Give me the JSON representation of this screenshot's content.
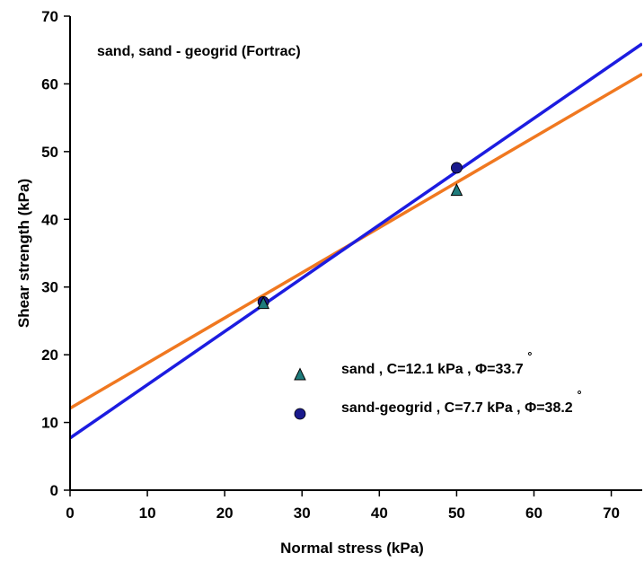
{
  "chart_data": {
    "type": "scatter",
    "annotation": "sand, sand - geogrid (Fortrac)",
    "xlabel": "Normal stress (kPa)",
    "ylabel": "Shear strength (kPa)",
    "xlim": [
      0,
      74
    ],
    "ylim": [
      0,
      70
    ],
    "xticks": [
      0,
      10,
      20,
      30,
      40,
      50,
      60,
      70
    ],
    "yticks": [
      0,
      10,
      20,
      30,
      40,
      50,
      60,
      70
    ],
    "grid": false,
    "legend_position": "lower-right",
    "series": [
      {
        "name": "sand , C=12.1 kPa , Φ=33.7",
        "degree_symbol": "˚",
        "marker": "triangle",
        "marker_color": "#1e7b7b",
        "line_color": "#f07820",
        "points": [
          {
            "x": 25,
            "y": 27.5
          },
          {
            "x": 50,
            "y": 44.2
          }
        ],
        "fit": {
          "intercept": 12.1,
          "slope": 0.6669
        }
      },
      {
        "name": "sand-geogrid , C=7.7 kPa , Φ=38.2",
        "degree_symbol": "˚",
        "marker": "circle",
        "marker_color": "#1a1a8c",
        "line_color": "#1c1ce0",
        "points": [
          {
            "x": 25,
            "y": 27.8
          },
          {
            "x": 50,
            "y": 47.6
          }
        ],
        "fit": {
          "intercept": 7.7,
          "slope": 0.7869
        }
      }
    ]
  }
}
